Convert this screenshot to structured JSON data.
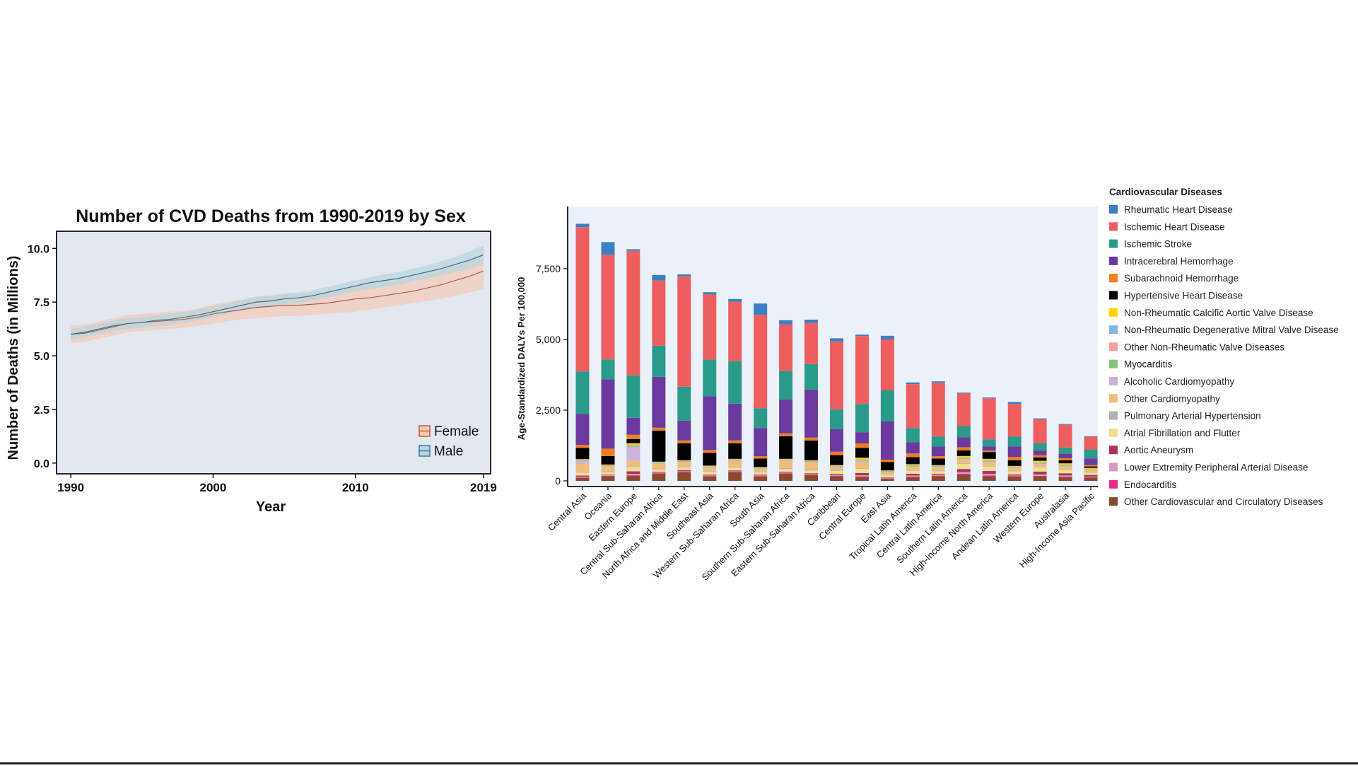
{
  "chart_data": [
    {
      "type": "area",
      "title": "Number of CVD Deaths from 1990-2019 by Sex",
      "xlabel": "Year",
      "ylabel": "Number of Deaths (in Millions)",
      "xlim": [
        1989,
        2019.5
      ],
      "ylim": [
        -0.5,
        10.8
      ],
      "x_ticks": [
        1990,
        2000,
        2010,
        2019
      ],
      "y_ticks": [
        0.0,
        2.5,
        5.0,
        7.5,
        10.0
      ],
      "x_tick_labels": [
        "1990",
        "2000",
        "2010",
        "2019"
      ],
      "y_tick_labels": [
        "0.0",
        "2.5",
        "5.0",
        "7.5",
        "10.0"
      ],
      "legend": "bottom-right",
      "grid": false,
      "background_color": "#e3e7f0",
      "x": [
        1990,
        1991,
        1992,
        1993,
        1994,
        1995,
        1996,
        1997,
        1998,
        1999,
        2000,
        2001,
        2002,
        2003,
        2004,
        2005,
        2006,
        2007,
        2008,
        2009,
        2010,
        2011,
        2012,
        2013,
        2014,
        2015,
        2016,
        2017,
        2018,
        2019
      ],
      "series": [
        {
          "name": "Female",
          "color": "#e9826a",
          "band_color": "#f4c9b6",
          "values": [
            6.0,
            6.05,
            6.2,
            6.35,
            6.5,
            6.55,
            6.6,
            6.65,
            6.7,
            6.8,
            6.95,
            7.05,
            7.15,
            7.25,
            7.3,
            7.35,
            7.35,
            7.4,
            7.45,
            7.55,
            7.65,
            7.7,
            7.8,
            7.9,
            8.0,
            8.15,
            8.3,
            8.5,
            8.7,
            8.95
          ],
          "lower": [
            5.6,
            5.65,
            5.8,
            5.95,
            6.1,
            6.15,
            6.2,
            6.25,
            6.3,
            6.4,
            6.5,
            6.6,
            6.7,
            6.75,
            6.8,
            6.85,
            6.85,
            6.9,
            6.95,
            7.0,
            7.05,
            7.15,
            7.25,
            7.35,
            7.45,
            7.55,
            7.65,
            7.8,
            7.95,
            8.1
          ],
          "upper": [
            6.4,
            6.45,
            6.6,
            6.75,
            6.9,
            6.95,
            7.0,
            7.05,
            7.1,
            7.2,
            7.4,
            7.5,
            7.6,
            7.75,
            7.8,
            7.85,
            7.9,
            7.95,
            8.0,
            8.1,
            8.25,
            8.3,
            8.4,
            8.5,
            8.6,
            8.75,
            8.95,
            9.2,
            9.45,
            9.8
          ]
        },
        {
          "name": "Male",
          "color": "#5a8fc4",
          "band_color": "#b7d6dc",
          "values": [
            6.0,
            6.1,
            6.25,
            6.4,
            6.5,
            6.55,
            6.65,
            6.7,
            6.8,
            6.9,
            7.05,
            7.2,
            7.35,
            7.5,
            7.55,
            7.65,
            7.7,
            7.8,
            7.95,
            8.1,
            8.25,
            8.4,
            8.5,
            8.6,
            8.75,
            8.9,
            9.05,
            9.25,
            9.45,
            9.7
          ],
          "lower": [
            5.75,
            5.85,
            6.0,
            6.15,
            6.25,
            6.3,
            6.4,
            6.45,
            6.55,
            6.65,
            6.8,
            6.95,
            7.1,
            7.25,
            7.3,
            7.4,
            7.45,
            7.55,
            7.7,
            7.85,
            8.0,
            8.1,
            8.2,
            8.3,
            8.45,
            8.6,
            8.75,
            8.9,
            9.05,
            9.25
          ],
          "upper": [
            6.25,
            6.35,
            6.5,
            6.65,
            6.75,
            6.8,
            6.9,
            6.95,
            7.05,
            7.15,
            7.3,
            7.45,
            7.6,
            7.75,
            7.8,
            7.9,
            7.95,
            8.05,
            8.2,
            8.35,
            8.5,
            8.65,
            8.8,
            8.9,
            9.05,
            9.2,
            9.4,
            9.6,
            9.85,
            10.15
          ]
        }
      ]
    },
    {
      "type": "bar",
      "stacked": true,
      "ylabel": "Age-Standardized DALYs Per 100,000",
      "ylim": [
        -200,
        9700
      ],
      "y_ticks": [
        0,
        2500,
        5000,
        7500
      ],
      "y_tick_labels": [
        "0",
        "2,500",
        "5,000",
        "7,500"
      ],
      "legend_title": "Cardiovascular Diseases",
      "legend": "right",
      "grid": false,
      "background_color": "#ebf1f9",
      "categories": [
        "Central Asia",
        "Oceania",
        "Eastern Europe",
        "Central Sub-Saharan Africa",
        "North Africa and Middle East",
        "Southeast Asia",
        "Western Sub-Saharan Africa",
        "South Asia",
        "Southern Sub-Saharan Africa",
        "Eastern Sub-Saharan Africa",
        "Caribbean",
        "Central Europe",
        "East Asia",
        "Tropical Latin America",
        "Central Latin America",
        "Southern Latin America",
        "High-Income North America",
        "Andean Latin America",
        "Western Europe",
        "Australasia",
        "High-Income Asia Pacific"
      ],
      "series": [
        {
          "name": "Other Cardiovascular and Circulatory Diseases",
          "color": "#8b4a2b",
          "values": [
            100,
            160,
            180,
            250,
            300,
            150,
            300,
            150,
            250,
            200,
            160,
            140,
            70,
            130,
            160,
            220,
            160,
            150,
            160,
            130,
            120
          ]
        },
        {
          "name": "Endocarditis",
          "color": "#e7298a",
          "values": [
            20,
            20,
            20,
            20,
            20,
            20,
            20,
            20,
            20,
            20,
            20,
            20,
            10,
            20,
            20,
            30,
            30,
            20,
            20,
            20,
            10
          ]
        },
        {
          "name": "Lower Extremity Peripheral Arterial Disease",
          "color": "#d59ac6",
          "values": [
            30,
            20,
            50,
            20,
            20,
            20,
            20,
            20,
            20,
            20,
            20,
            40,
            10,
            40,
            20,
            60,
            60,
            20,
            50,
            40,
            20
          ]
        },
        {
          "name": "Aortic Aneurysm",
          "color": "#b03060",
          "values": [
            40,
            20,
            90,
            30,
            40,
            30,
            30,
            30,
            30,
            30,
            40,
            80,
            30,
            60,
            40,
            110,
            100,
            40,
            100,
            80,
            60
          ]
        },
        {
          "name": "Atrial Fibrillation and Flutter",
          "color": "#ede08e",
          "values": [
            100,
            90,
            150,
            90,
            100,
            100,
            100,
            90,
            100,
            100,
            110,
            150,
            90,
            110,
            100,
            180,
            160,
            110,
            140,
            120,
            80
          ]
        },
        {
          "name": "Pulmonary Arterial Hypertension",
          "color": "#b0b0b0",
          "values": [
            20,
            30,
            20,
            30,
            30,
            20,
            30,
            20,
            30,
            30,
            20,
            20,
            20,
            20,
            20,
            20,
            20,
            20,
            20,
            20,
            20
          ]
        },
        {
          "name": "Other Cardiomyopathy",
          "color": "#f5bb7a",
          "values": [
            300,
            160,
            200,
            160,
            150,
            120,
            200,
            90,
            250,
            250,
            100,
            200,
            70,
            100,
            120,
            140,
            120,
            100,
            90,
            90,
            60
          ]
        },
        {
          "name": "Alcoholic Cardiomyopathy",
          "color": "#ccb3d9",
          "values": [
            100,
            20,
            500,
            20,
            10,
            20,
            20,
            10,
            20,
            20,
            20,
            60,
            10,
            30,
            20,
            20,
            30,
            10,
            20,
            20,
            10
          ]
        },
        {
          "name": "Myocarditis",
          "color": "#85c47c",
          "values": [
            20,
            20,
            30,
            20,
            20,
            20,
            20,
            20,
            20,
            20,
            20,
            20,
            20,
            20,
            20,
            20,
            20,
            20,
            20,
            20,
            20
          ]
        },
        {
          "name": "Other Non-Rheumatic Valve Diseases",
          "color": "#f4a0a0",
          "values": [
            10,
            10,
            10,
            10,
            10,
            10,
            10,
            10,
            10,
            10,
            10,
            10,
            10,
            10,
            10,
            10,
            10,
            10,
            10,
            10,
            10
          ]
        },
        {
          "name": "Non-Rheumatic Degenerative Mitral Valve Disease",
          "color": "#7fb8e3",
          "values": [
            10,
            10,
            20,
            10,
            10,
            10,
            10,
            10,
            10,
            10,
            10,
            20,
            10,
            10,
            10,
            20,
            20,
            10,
            20,
            20,
            10
          ]
        },
        {
          "name": "Non-Rheumatic Calcific Aortic Valve Disease",
          "color": "#ffd400",
          "values": [
            20,
            20,
            60,
            20,
            20,
            20,
            20,
            20,
            20,
            20,
            30,
            60,
            20,
            40,
            20,
            50,
            50,
            20,
            60,
            50,
            40
          ]
        },
        {
          "name": "Hypertensive Heart Disease",
          "color": "#000000",
          "values": [
            400,
            300,
            150,
            1100,
            600,
            450,
            550,
            300,
            800,
            700,
            350,
            350,
            300,
            250,
            230,
            200,
            240,
            200,
            120,
            110,
            50
          ]
        },
        {
          "name": "Subarachnoid Hemorrhage",
          "color": "#ef7d21",
          "values": [
            100,
            260,
            150,
            100,
            100,
            100,
            100,
            80,
            100,
            100,
            120,
            150,
            80,
            130,
            80,
            110,
            50,
            120,
            80,
            70,
            50
          ]
        },
        {
          "name": "Intracerebral Hemorrhage",
          "color": "#6b3a9e",
          "values": [
            1100,
            2450,
            600,
            1800,
            700,
            1900,
            1300,
            1000,
            1200,
            1700,
            800,
            400,
            1350,
            400,
            350,
            350,
            150,
            370,
            170,
            160,
            230
          ]
        },
        {
          "name": "Ischemic Stroke",
          "color": "#2a9a8a",
          "values": [
            1500,
            700,
            1500,
            1100,
            1200,
            1300,
            1500,
            700,
            1000,
            900,
            700,
            1000,
            1100,
            500,
            350,
            400,
            250,
            350,
            250,
            220,
            320
          ]
        },
        {
          "name": "Ischemic Heart Disease",
          "color": "#ee5e5e",
          "values": [
            5100,
            3700,
            4400,
            2300,
            3900,
            2300,
            2100,
            3300,
            1650,
            1450,
            2400,
            2400,
            1800,
            1550,
            1900,
            1150,
            1450,
            1150,
            850,
            800,
            450
          ]
        },
        {
          "name": "Rheumatic Heart Disease",
          "color": "#3b7fc4",
          "values": [
            120,
            450,
            60,
            200,
            70,
            80,
            100,
            400,
            150,
            120,
            110,
            50,
            130,
            60,
            50,
            30,
            30,
            70,
            30,
            30,
            20
          ]
        }
      ]
    }
  ]
}
